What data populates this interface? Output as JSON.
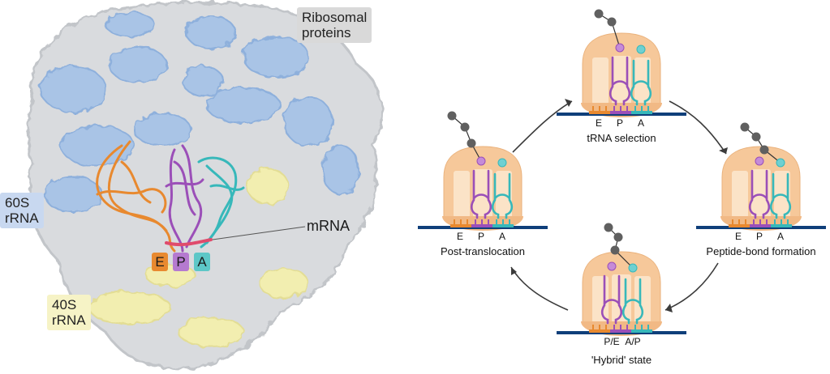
{
  "labels": {
    "ribosomal_proteins": "Ribosomal\nproteins",
    "rrna_60s": "60S\nrRNA",
    "rrna_40s": "40S\nrRNA",
    "mrna": "mRNA"
  },
  "structure_sites": [
    "E",
    "P",
    "A"
  ],
  "states": [
    {
      "caption": "tRNA selection",
      "sites": [
        "E",
        "P",
        "A"
      ]
    },
    {
      "caption": "Peptide-bond formation",
      "sites": [
        "E",
        "P",
        "A"
      ]
    },
    {
      "caption": "'Hybrid' state",
      "sites": [
        "P/E",
        "A/P"
      ]
    },
    {
      "caption": "Post-translocation",
      "sites": [
        "E",
        "P",
        "A"
      ]
    }
  ],
  "colors": {
    "protein_blue": "#a9c4e6",
    "rrna_gray": "#d9dbde",
    "rrna_40s_yellow": "#f2eeb0",
    "e_site": "#e8892f",
    "p_site": "#9b4fb8",
    "a_site": "#37b8ba",
    "mrna": "#0f3f7a",
    "subunit": "#f6c89a",
    "amino_acid": "#606060"
  }
}
